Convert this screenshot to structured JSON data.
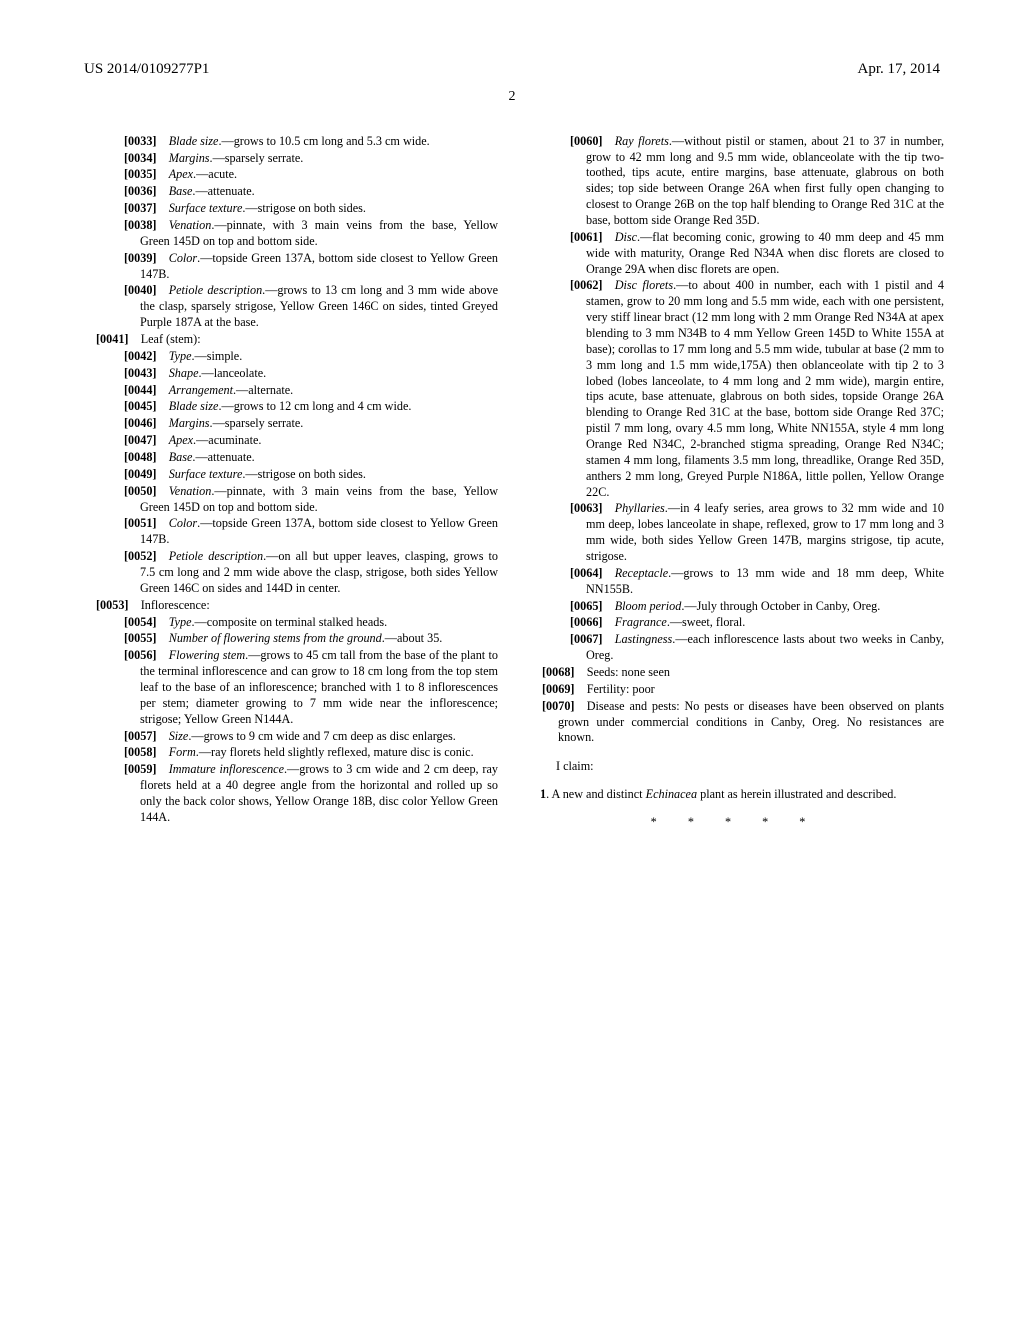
{
  "header": {
    "left": "US 2014/0109277P1",
    "right": "Apr. 17, 2014"
  },
  "page_number": "2",
  "left_col": [
    {
      "lvl": 2,
      "num": "[0033]",
      "label": "Blade size",
      "text": ".—grows to 10.5 cm long and 5.3 cm wide."
    },
    {
      "lvl": 2,
      "num": "[0034]",
      "label": "Margins",
      "text": ".—sparsely serrate."
    },
    {
      "lvl": 2,
      "num": "[0035]",
      "label": "Apex",
      "text": ".—acute."
    },
    {
      "lvl": 2,
      "num": "[0036]",
      "label": "Base",
      "text": ".—attenuate."
    },
    {
      "lvl": 2,
      "num": "[0037]",
      "label": "Surface texture",
      "text": ".—strigose on both sides."
    },
    {
      "lvl": 2,
      "num": "[0038]",
      "label": "Venation",
      "text": ".—pinnate, with 3 main veins from the base, Yellow Green 145D on top and bottom side."
    },
    {
      "lvl": 2,
      "num": "[0039]",
      "label": "Color",
      "text": ".—topside Green 137A, bottom side closest to Yellow Green 147B."
    },
    {
      "lvl": 2,
      "num": "[0040]",
      "label": "Petiole description",
      "text": ".—grows to 13 cm long and 3 mm wide above the clasp, sparsely strigose, Yellow Green 146C on sides, tinted Greyed Purple 187A at the base."
    },
    {
      "lvl": 1,
      "num": "[0041]",
      "plain": "Leaf (stem):"
    },
    {
      "lvl": 2,
      "num": "[0042]",
      "label": "Type",
      "text": ".—simple."
    },
    {
      "lvl": 2,
      "num": "[0043]",
      "label": "Shape",
      "text": ".—lanceolate."
    },
    {
      "lvl": 2,
      "num": "[0044]",
      "label": "Arrangement",
      "text": ".—alternate."
    },
    {
      "lvl": 2,
      "num": "[0045]",
      "label": "Blade size",
      "text": ".—grows to 12 cm long and 4 cm wide."
    },
    {
      "lvl": 2,
      "num": "[0046]",
      "label": "Margins",
      "text": ".—sparsely serrate."
    },
    {
      "lvl": 2,
      "num": "[0047]",
      "label": "Apex",
      "text": ".—acuminate."
    },
    {
      "lvl": 2,
      "num": "[0048]",
      "label": "Base",
      "text": ".—attenuate."
    },
    {
      "lvl": 2,
      "num": "[0049]",
      "label": "Surface texture",
      "text": ".—strigose on both sides."
    },
    {
      "lvl": 2,
      "num": "[0050]",
      "label": "Venation",
      "text": ".—pinnate, with 3 main veins from the base, Yellow Green 145D on top and bottom side."
    },
    {
      "lvl": 2,
      "num": "[0051]",
      "label": "Color",
      "text": ".—topside Green 137A, bottom side closest to Yellow Green 147B."
    },
    {
      "lvl": 2,
      "num": "[0052]",
      "label": "Petiole description",
      "text": ".—on all but upper leaves, clasping, grows to 7.5 cm long and 2 mm wide above the clasp, strigose, both sides Yellow Green 146C on sides and 144D in center."
    },
    {
      "lvl": 1,
      "num": "[0053]",
      "plain": "Inflorescence:"
    },
    {
      "lvl": 2,
      "num": "[0054]",
      "label": "Type",
      "text": ".—composite on terminal stalked heads."
    },
    {
      "lvl": 2,
      "num": "[0055]",
      "label": "Number of flowering stems from the ground",
      "text": ".—about 35."
    },
    {
      "lvl": 2,
      "num": "[0056]",
      "label": "Flowering stem",
      "text": ".—grows to 45 cm tall from the base of the plant to the terminal inflorescence and can grow to 18 cm long from the top stem leaf to the base of an inflorescence; branched with 1 to 8 inflorescences per stem; diameter growing to 7 mm wide near the inflorescence; strigose; Yellow Green N144A."
    },
    {
      "lvl": 2,
      "num": "[0057]",
      "label": "Size",
      "text": ".—grows to 9 cm wide and 7 cm deep as disc enlarges."
    },
    {
      "lvl": 2,
      "num": "[0058]",
      "label": "Form",
      "text": ".—ray florets held slightly reflexed, mature disc is conic."
    },
    {
      "lvl": 2,
      "num": "[0059]",
      "label": "Immature inflorescence",
      "text": ".—grows to 3 cm wide and 2 cm deep, ray florets held at a 40 degree angle from the horizontal and rolled up so only the back color shows, Yellow Orange 18B, disc color Yellow Green 144A."
    }
  ],
  "right_col": [
    {
      "lvl": 2,
      "num": "[0060]",
      "label": "Ray florets",
      "text": ".—without pistil or stamen, about 21 to 37 in number, grow to 42 mm long and 9.5 mm wide, oblanceolate with the tip two-toothed, tips acute, entire margins, base attenuate, glabrous on both sides; top side between Orange 26A when first fully open changing to closest to Orange 26B on the top half blending to Orange Red 31C at the base, bottom side Orange Red 35D."
    },
    {
      "lvl": 2,
      "num": "[0061]",
      "label": "Disc",
      "text": ".—flat becoming conic, growing to 40 mm deep and 45 mm wide with maturity, Orange Red N34A when disc florets are closed to Orange 29A when disc florets are open."
    },
    {
      "lvl": 2,
      "num": "[0062]",
      "label": "Disc florets",
      "text": ".—to about 400 in number, each with 1 pistil and 4 stamen, grow to 20 mm long and 5.5 mm wide, each with one persistent, very stiff linear bract (12 mm long with 2 mm Orange Red N34A at apex blending to 3 mm N34B to 4 mm Yellow Green 145D to White 155A at base); corollas to 17 mm long and 5.5 mm wide, tubular at base (2 mm to 3 mm long and 1.5 mm wide,175A) then oblanceolate with tip 2 to 3 lobed (lobes lanceolate, to 4 mm long and 2 mm wide), margin entire, tips acute, base attenuate, glabrous on both sides, topside Orange 26A blending to Orange Red 31C at the base, bottom side Orange Red 37C; pistil 7 mm long, ovary 4.5 mm long, White NN155A, style 4 mm long Orange Red N34C, 2-branched stigma spreading, Orange Red N34C; stamen 4 mm long, filaments 3.5 mm long, threadlike, Orange Red 35D, anthers 2 mm long, Greyed Purple N186A, little pollen, Yellow Orange 22C."
    },
    {
      "lvl": 2,
      "num": "[0063]",
      "label": "Phyllaries",
      "text": ".—in 4 leafy series, area grows to 32 mm wide and 10 mm deep, lobes lanceolate in shape, reflexed, grow to 17 mm long and 3 mm wide, both sides Yellow Green 147B, margins strigose, tip acute, strigose."
    },
    {
      "lvl": 2,
      "num": "[0064]",
      "label": "Receptacle",
      "text": ".—grows to 13 mm wide and 18 mm deep, White NN155B."
    },
    {
      "lvl": 2,
      "num": "[0065]",
      "label": "Bloom period",
      "text": ".—July through October in Canby, Oreg."
    },
    {
      "lvl": 2,
      "num": "[0066]",
      "label": "Fragrance",
      "text": ".—sweet, floral."
    },
    {
      "lvl": 2,
      "num": "[0067]",
      "label": "Lastingness",
      "text": ".—each inflorescence lasts about two weeks in Canby, Oreg."
    },
    {
      "lvl": 1,
      "num": "[0068]",
      "plain": "Seeds: none seen"
    },
    {
      "lvl": 1,
      "num": "[0069]",
      "plain": "Fertility: poor"
    },
    {
      "lvl": 1,
      "num": "[0070]",
      "plain": "Disease and pests: No pests or diseases have been observed on plants grown under commercial conditions in Canby, Oreg. No resistances are known."
    }
  ],
  "claims": {
    "intro": "I claim:",
    "num": "1",
    "pre": ". A new and distinct ",
    "italic": "Echinacea",
    "post": " plant as herein illustrated and described."
  },
  "stars": "* * * * *"
}
